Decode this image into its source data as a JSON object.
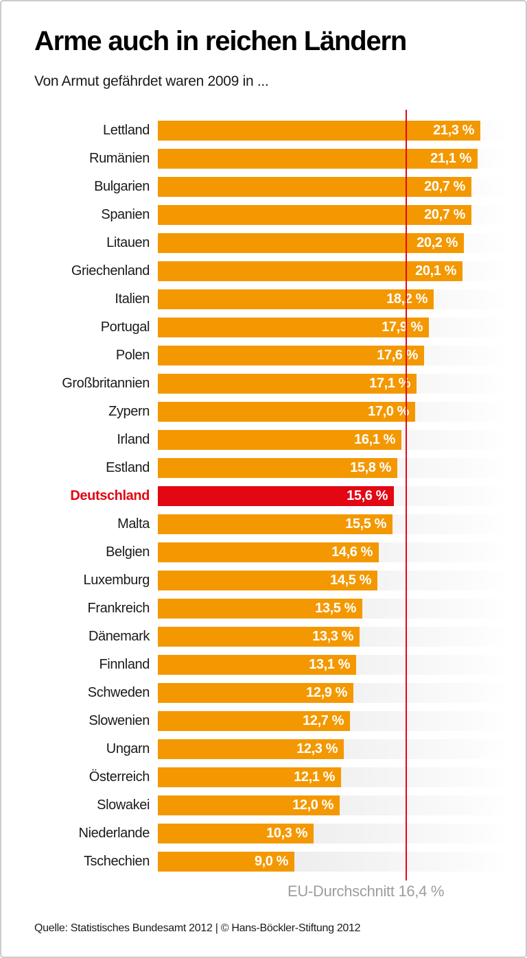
{
  "title": "Arme auch in reichen Ländern",
  "subtitle": "Von Armut gefährdet waren 2009 in ...",
  "source": "Quelle: Statistisches Bundesamt 2012 | © Hans-Böckler-Stiftung 2012",
  "colors": {
    "bar": "#f39800",
    "highlight": "#e30613",
    "average_line": "#e30613",
    "average_text": "#9d9d9c"
  },
  "chart_data": {
    "type": "bar",
    "orientation": "horizontal",
    "title": "Arme auch in reichen Ländern",
    "subtitle": "Von Armut gefährdet waren 2009 in ...",
    "unit": "%",
    "xlim": [
      0,
      23.3
    ],
    "grid": false,
    "legend": false,
    "highlight_category": "Deutschland",
    "average": {
      "label": "EU-Durchschnitt 16,4 %",
      "value": 16.4
    },
    "categories": [
      "Lettland",
      "Rumänien",
      "Bulgarien",
      "Spanien",
      "Litauen",
      "Griechenland",
      "Italien",
      "Portugal",
      "Polen",
      "Großbritannien",
      "Zypern",
      "Irland",
      "Estland",
      "Deutschland",
      "Malta",
      "Belgien",
      "Luxemburg",
      "Frankreich",
      "Dänemark",
      "Finnland",
      "Schweden",
      "Slowenien",
      "Ungarn",
      "Österreich",
      "Slowakei",
      "Niederlande",
      "Tschechien"
    ],
    "values": [
      21.3,
      21.1,
      20.7,
      20.7,
      20.2,
      20.1,
      18.2,
      17.9,
      17.6,
      17.1,
      17.0,
      16.1,
      15.8,
      15.6,
      15.5,
      14.6,
      14.5,
      13.5,
      13.3,
      13.1,
      12.9,
      12.7,
      12.3,
      12.1,
      12.0,
      10.3,
      9.0
    ],
    "value_labels": [
      "21,3 %",
      "21,1 %",
      "20,7 %",
      "20,7 %",
      "20,2 %",
      "20,1 %",
      "18,2 %",
      "17,9 %",
      "17,6 %",
      "17,1 %",
      "17,0 %",
      "16,1 %",
      "15,8 %",
      "15,6 %",
      "15,5 %",
      "14,6 %",
      "14,5 %",
      "13,5 %",
      "13,3 %",
      "13,1 %",
      "12,9 %",
      "12,7 %",
      "12,3 %",
      "12,1 %",
      "12,0 %",
      "10,3 %",
      "9,0 %"
    ]
  }
}
